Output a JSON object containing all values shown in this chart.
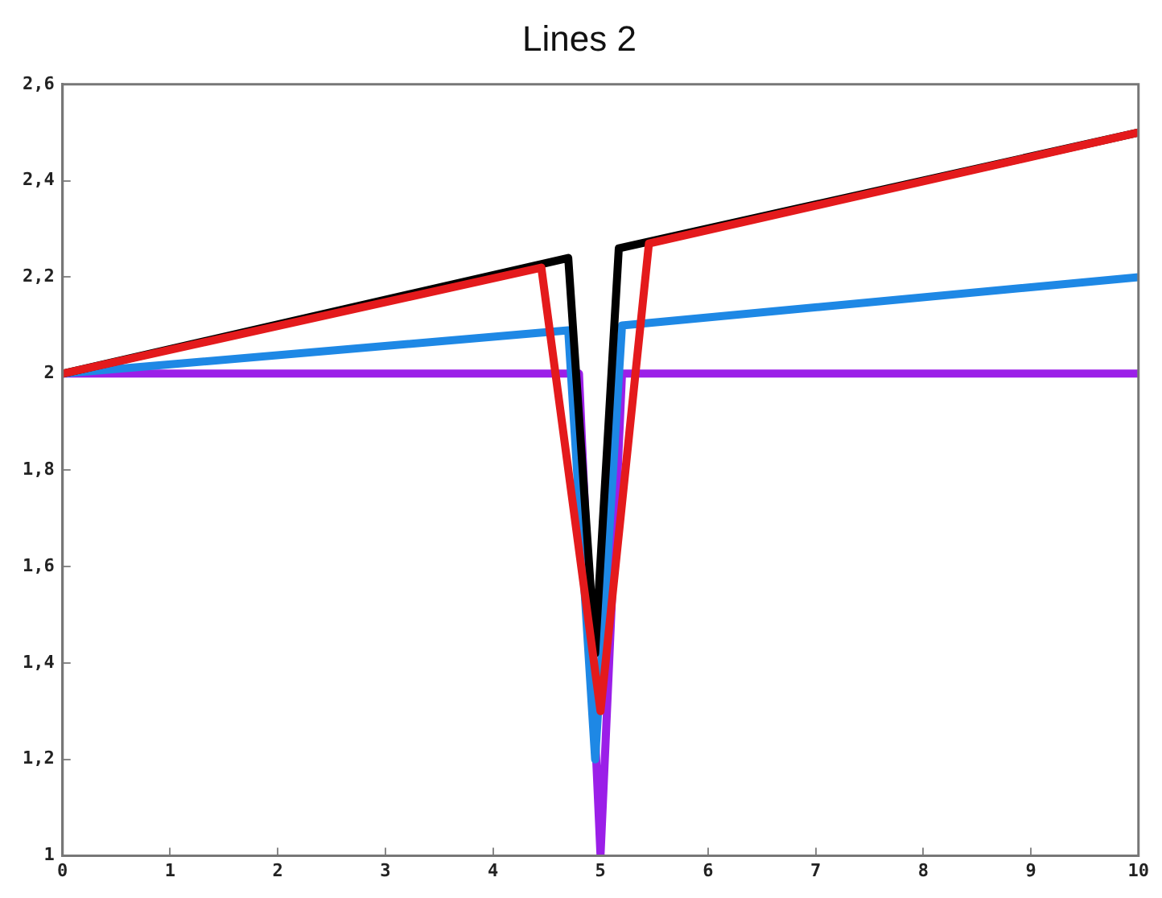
{
  "chart_data": {
    "type": "line",
    "title": "Lines 2",
    "xlim": [
      0,
      10
    ],
    "ylim": [
      1,
      2.6
    ],
    "xticks": [
      0,
      1,
      2,
      3,
      4,
      5,
      6,
      7,
      8,
      9,
      10
    ],
    "yticks": [
      1,
      {
        "value": 1.2,
        "label": "1,2"
      },
      {
        "value": 1.4,
        "label": "1,4"
      },
      {
        "value": 1.6,
        "label": "1,6"
      },
      {
        "value": 1.8,
        "label": "1,8"
      },
      2,
      {
        "value": 2.2,
        "label": "2,2"
      },
      {
        "value": 2.4,
        "label": "2,4"
      },
      {
        "value": 2.6,
        "label": "2,6"
      }
    ],
    "grid": false,
    "legend": false,
    "marker": "none",
    "line_style": "solid",
    "series": [
      {
        "color": "#e41a1c",
        "x": [
          0,
          4.45,
          5,
          5.45,
          10
        ],
        "values": [
          2,
          2.22,
          1.3,
          2.27,
          2.5
        ]
      },
      {
        "color": "#000000",
        "x": [
          0,
          4.7,
          4.95,
          5.17,
          10
        ],
        "values": [
          2,
          2.24,
          1.42,
          2.26,
          2.5
        ]
      },
      {
        "color": "#1e88e5",
        "x": [
          0,
          4.7,
          4.95,
          5.2,
          10
        ],
        "values": [
          2,
          2.09,
          1.2,
          2.1,
          2.2
        ]
      },
      {
        "color": "#9b1fe8",
        "x": [
          0,
          4.8,
          5,
          5.2,
          10
        ],
        "values": [
          2,
          2,
          1,
          2,
          2
        ]
      }
    ]
  }
}
